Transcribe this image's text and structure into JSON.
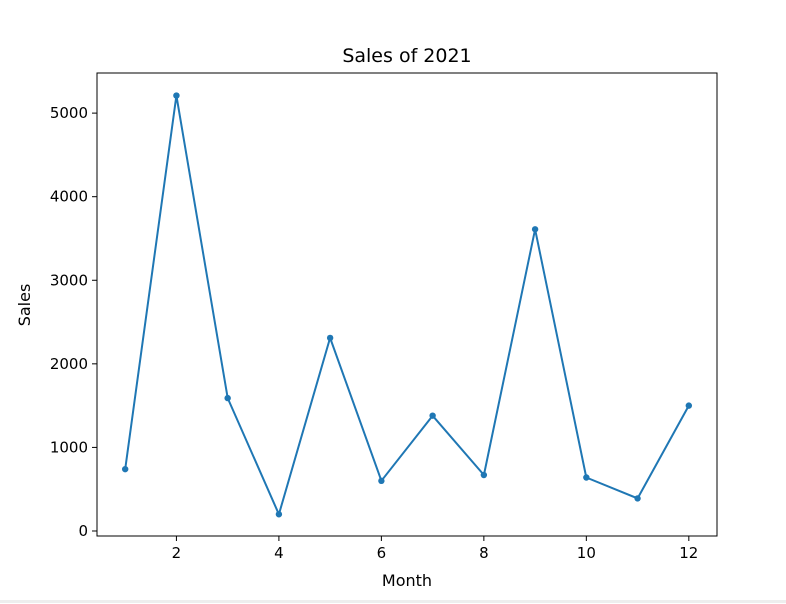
{
  "chart_data": {
    "type": "line",
    "title": "Sales of 2021",
    "xlabel": "Month",
    "ylabel": "Sales",
    "x": [
      1,
      2,
      3,
      4,
      5,
      6,
      7,
      8,
      9,
      10,
      11,
      12
    ],
    "series": [
      {
        "values": [
          740,
          5210,
          1590,
          200,
          2310,
          600,
          1380,
          670,
          3610,
          640,
          390,
          1500
        ],
        "color": "#1f77b4",
        "marker": "circle"
      }
    ],
    "xlim": [
      0.45,
      12.55
    ],
    "ylim": [
      -60,
      5480
    ],
    "xticks": [
      2,
      4,
      6,
      8,
      10,
      12
    ],
    "yticks": [
      0,
      1000,
      2000,
      3000,
      4000,
      5000
    ],
    "grid": false,
    "legend": "none"
  }
}
